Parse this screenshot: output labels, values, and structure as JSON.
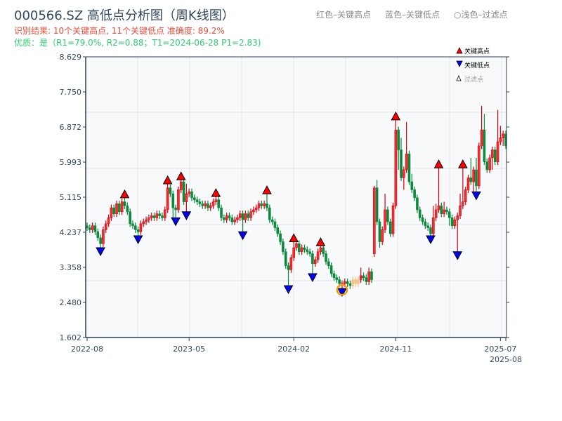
{
  "header": {
    "title": "000566.SZ 高低点分析图（周K线图）",
    "result_line": "识别结果: 10个关键高点, 11个关键低点  准确度: 89.2%",
    "quality_line": "优质：是（R1=79.0%, R2=0.88；T1=2024-06-28 P1=2.83)",
    "hint_high": "红色–关键高点",
    "hint_low": "蓝色–关键低点",
    "hint_filtered": "○浅色–过滤点"
  },
  "chart_data": {
    "type": "candlestick",
    "title": "000566.SZ 高低点分析图（周K线图）",
    "colors": {
      "up": "#d7000f",
      "up_fill": "#f03030",
      "down": "#0a8a3a",
      "filtered": "#f5c08a",
      "key_high": "#ff0000",
      "key_low": "#0000ff",
      "highlight_ring": "#f39c12"
    },
    "ylim": [
      1.602,
      8.629
    ],
    "y_ticks": [
      "1.602",
      "2.480",
      "3.358",
      "4.237",
      "5.115",
      "5.993",
      "6.872",
      "7.750",
      "8.629"
    ],
    "x_ticks": [
      {
        "index": 0,
        "label": "2022-08"
      },
      {
        "index": 38,
        "label": "2023-05"
      },
      {
        "index": 77,
        "label": "2024-02"
      },
      {
        "index": 115,
        "label": "2024-11"
      },
      {
        "index": 154,
        "label": "2025-07"
      },
      {
        "index": 156,
        "label": "2025-08"
      }
    ],
    "grid": true,
    "legend": {
      "position": "top-right",
      "items": [
        "关键高点",
        "关键低点",
        "过滤点"
      ]
    },
    "ohlc_fields": [
      "open",
      "high",
      "low",
      "close"
    ],
    "candles": [
      [
        4.4,
        4.48,
        4.27,
        4.35
      ],
      [
        4.35,
        4.43,
        4.22,
        4.3
      ],
      [
        4.3,
        4.48,
        4.22,
        4.4
      ],
      [
        4.4,
        4.48,
        4.17,
        4.25
      ],
      [
        4.25,
        4.33,
        4.02,
        4.1
      ],
      [
        4.1,
        4.18,
        3.85,
        3.95
      ],
      [
        3.95,
        4.38,
        3.87,
        4.3
      ],
      [
        4.3,
        4.53,
        4.22,
        4.45
      ],
      [
        4.45,
        4.68,
        4.37,
        4.6
      ],
      [
        4.6,
        4.93,
        4.52,
        4.85
      ],
      [
        4.85,
        4.93,
        4.62,
        4.7
      ],
      [
        4.7,
        5.03,
        4.62,
        4.95
      ],
      [
        4.95,
        5.03,
        4.67,
        4.75
      ],
      [
        4.75,
        5.08,
        4.67,
        5.0
      ],
      [
        5.0,
        5.1,
        4.82,
        4.9
      ],
      [
        4.9,
        4.98,
        4.67,
        4.75
      ],
      [
        4.75,
        4.83,
        4.37,
        4.45
      ],
      [
        4.45,
        4.53,
        4.32,
        4.4
      ],
      [
        4.4,
        4.48,
        4.22,
        4.3
      ],
      [
        4.3,
        4.38,
        4.15,
        4.25
      ],
      [
        4.25,
        4.53,
        4.17,
        4.45
      ],
      [
        4.45,
        4.58,
        4.37,
        4.5
      ],
      [
        4.5,
        4.63,
        4.42,
        4.55
      ],
      [
        4.55,
        4.68,
        4.47,
        4.6
      ],
      [
        4.6,
        4.73,
        4.52,
        4.65
      ],
      [
        4.65,
        4.73,
        4.52,
        4.6
      ],
      [
        4.6,
        4.78,
        4.52,
        4.7
      ],
      [
        4.7,
        4.78,
        4.57,
        4.65
      ],
      [
        4.65,
        4.73,
        4.52,
        4.6
      ],
      [
        4.6,
        4.88,
        4.52,
        4.8
      ],
      [
        4.8,
        5.45,
        4.72,
        5.35
      ],
      [
        5.35,
        5.43,
        5.12,
        5.2
      ],
      [
        5.2,
        5.28,
        4.6,
        4.85
      ],
      [
        4.85,
        4.93,
        4.6,
        4.8
      ],
      [
        4.8,
        5.38,
        4.72,
        5.3
      ],
      [
        5.3,
        5.55,
        5.22,
        5.5
      ],
      [
        5.5,
        5.58,
        4.92,
        5.0
      ],
      [
        5.0,
        5.45,
        4.75,
        5.2
      ],
      [
        5.2,
        5.33,
        5.12,
        5.25
      ],
      [
        5.25,
        5.33,
        5.02,
        5.1
      ],
      [
        5.1,
        5.18,
        4.97,
        5.05
      ],
      [
        5.05,
        5.13,
        4.92,
        5.0
      ],
      [
        5.0,
        5.08,
        4.87,
        4.95
      ],
      [
        4.95,
        5.03,
        4.82,
        4.9
      ],
      [
        4.9,
        5.03,
        4.82,
        4.95
      ],
      [
        4.95,
        5.03,
        4.77,
        4.85
      ],
      [
        4.85,
        4.98,
        4.77,
        4.9
      ],
      [
        4.9,
        5.08,
        4.82,
        5.0
      ],
      [
        5.0,
        5.13,
        4.92,
        5.05
      ],
      [
        5.05,
        5.13,
        4.77,
        4.85
      ],
      [
        4.85,
        4.93,
        4.52,
        4.6
      ],
      [
        4.6,
        4.68,
        4.47,
        4.55
      ],
      [
        4.55,
        4.73,
        4.47,
        4.65
      ],
      [
        4.65,
        4.73,
        4.52,
        4.6
      ],
      [
        4.6,
        4.68,
        4.42,
        4.5
      ],
      [
        4.5,
        4.63,
        4.42,
        4.55
      ],
      [
        4.55,
        4.68,
        4.47,
        4.6
      ],
      [
        4.6,
        4.78,
        4.52,
        4.7
      ],
      [
        4.7,
        4.78,
        4.25,
        4.55
      ],
      [
        4.55,
        4.78,
        4.47,
        4.7
      ],
      [
        4.7,
        4.78,
        4.52,
        4.6
      ],
      [
        4.6,
        4.83,
        4.52,
        4.75
      ],
      [
        4.75,
        4.88,
        4.67,
        4.8
      ],
      [
        4.8,
        4.93,
        4.72,
        4.85
      ],
      [
        4.85,
        5.03,
        4.77,
        4.95
      ],
      [
        4.95,
        5.03,
        4.82,
        4.9
      ],
      [
        4.9,
        5.03,
        4.82,
        4.95
      ],
      [
        4.95,
        5.2,
        4.77,
        4.85
      ],
      [
        4.85,
        4.93,
        4.47,
        4.55
      ],
      [
        4.55,
        4.63,
        4.42,
        4.5
      ],
      [
        4.5,
        4.58,
        4.27,
        4.35
      ],
      [
        4.35,
        4.43,
        4.12,
        4.2
      ],
      [
        4.2,
        4.28,
        3.92,
        4.0
      ],
      [
        4.0,
        4.08,
        3.67,
        3.75
      ],
      [
        3.75,
        3.83,
        3.32,
        3.4
      ],
      [
        3.4,
        3.48,
        2.9,
        3.3
      ],
      [
        3.3,
        3.68,
        3.22,
        3.6
      ],
      [
        3.6,
        4.0,
        3.52,
        3.85
      ],
      [
        3.85,
        4.03,
        3.77,
        3.95
      ],
      [
        3.95,
        4.03,
        3.67,
        3.75
      ],
      [
        3.75,
        3.93,
        3.67,
        3.85
      ],
      [
        3.85,
        3.93,
        3.72,
        3.8
      ],
      [
        3.8,
        3.88,
        3.67,
        3.75
      ],
      [
        3.75,
        3.83,
        3.62,
        3.7
      ],
      [
        3.7,
        3.78,
        3.2,
        3.45
      ],
      [
        3.45,
        3.63,
        3.37,
        3.55
      ],
      [
        3.55,
        3.83,
        3.47,
        3.75
      ],
      [
        3.75,
        3.9,
        3.67,
        3.85
      ],
      [
        3.85,
        3.93,
        3.62,
        3.7
      ],
      [
        3.7,
        3.78,
        3.42,
        3.5
      ],
      [
        3.5,
        3.58,
        3.32,
        3.4
      ],
      [
        3.4,
        3.48,
        3.12,
        3.2
      ],
      [
        3.2,
        3.28,
        3.02,
        3.1
      ],
      [
        3.1,
        3.18,
        2.97,
        3.05
      ],
      [
        3.05,
        3.13,
        2.87,
        2.95
      ],
      [
        2.95,
        3.03,
        2.83,
        2.95
      ],
      [
        2.95,
        3.08,
        2.87,
        3.0
      ],
      [
        3.0,
        3.08,
        2.87,
        2.95
      ],
      [
        2.95,
        3.03,
        2.82,
        2.9
      ],
      [
        2.9,
        3.13,
        2.82,
        3.05
      ],
      [
        3.05,
        3.13,
        2.87,
        2.95
      ],
      [
        2.95,
        3.13,
        2.87,
        3.05
      ],
      [
        3.05,
        3.35,
        2.97,
        3.15
      ],
      [
        3.15,
        3.23,
        3.02,
        3.1
      ],
      [
        3.1,
        3.18,
        2.92,
        3.0
      ],
      [
        3.0,
        3.35,
        2.92,
        3.25
      ],
      [
        3.25,
        3.33,
        2.97,
        3.05
      ],
      [
        3.7,
        5.4,
        3.62,
        5.35
      ],
      [
        5.35,
        5.55,
        4.42,
        4.5
      ],
      [
        4.5,
        4.58,
        3.85,
        4.0
      ],
      [
        4.0,
        4.38,
        3.92,
        4.3
      ],
      [
        4.3,
        5.2,
        4.22,
        4.8
      ],
      [
        4.8,
        4.88,
        4.42,
        4.5
      ],
      [
        4.5,
        4.58,
        4.12,
        4.2
      ],
      [
        4.2,
        4.98,
        4.12,
        4.9
      ],
      [
        4.9,
        7.05,
        4.82,
        6.8
      ],
      [
        6.8,
        6.88,
        5.8,
        6.3
      ],
      [
        6.3,
        6.6,
        5.52,
        5.6
      ],
      [
        5.6,
        5.88,
        5.3,
        5.8
      ],
      [
        5.8,
        7.0,
        5.72,
        6.2
      ],
      [
        6.2,
        6.28,
        5.42,
        5.5
      ],
      [
        5.5,
        5.7,
        5.22,
        5.3
      ],
      [
        5.3,
        5.38,
        5.02,
        5.1
      ],
      [
        5.1,
        5.18,
        4.72,
        4.8
      ],
      [
        4.8,
        4.88,
        4.52,
        4.6
      ],
      [
        4.6,
        4.68,
        4.42,
        4.5
      ],
      [
        4.5,
        4.58,
        4.32,
        4.4
      ],
      [
        4.4,
        4.48,
        4.27,
        4.35
      ],
      [
        4.35,
        4.43,
        4.15,
        4.2
      ],
      [
        4.2,
        4.9,
        4.12,
        4.6
      ],
      [
        4.6,
        4.95,
        4.52,
        4.8
      ],
      [
        4.8,
        5.85,
        4.72,
        4.9
      ],
      [
        4.9,
        4.98,
        4.62,
        4.7
      ],
      [
        4.7,
        5.0,
        4.62,
        4.8
      ],
      [
        4.8,
        4.88,
        4.67,
        4.75
      ],
      [
        4.75,
        4.83,
        4.4,
        4.6
      ],
      [
        4.6,
        4.68,
        4.32,
        4.4
      ],
      [
        4.4,
        4.63,
        4.32,
        4.55
      ],
      [
        4.55,
        4.73,
        3.75,
        4.65
      ],
      [
        4.65,
        5.2,
        4.57,
        4.9
      ],
      [
        4.9,
        5.85,
        4.82,
        5.0
      ],
      [
        5.0,
        5.38,
        4.92,
        5.3
      ],
      [
        5.3,
        5.68,
        5.22,
        5.6
      ],
      [
        5.6,
        6.1,
        5.42,
        5.5
      ],
      [
        5.5,
        5.88,
        5.2,
        5.8
      ],
      [
        5.8,
        6.1,
        5.25,
        5.4
      ],
      [
        5.4,
        6.48,
        5.32,
        6.4
      ],
      [
        6.4,
        7.4,
        6.32,
        6.8
      ],
      [
        6.8,
        7.2,
        5.92,
        6.0
      ],
      [
        6.0,
        6.08,
        5.72,
        5.8
      ],
      [
        5.8,
        6.18,
        5.72,
        6.1
      ],
      [
        6.1,
        6.38,
        5.8,
        6.3
      ],
      [
        6.3,
        6.38,
        5.92,
        6.0
      ],
      [
        6.0,
        7.3,
        5.92,
        6.5
      ],
      [
        6.5,
        6.9,
        6.42,
        6.6
      ],
      [
        6.6,
        6.78,
        6.4,
        6.7
      ],
      [
        6.7,
        6.78,
        6.32,
        6.4
      ]
    ],
    "filtered_indices": [
      99,
      100,
      101
    ],
    "key_highs": [
      {
        "index": 14,
        "price": 5.1
      },
      {
        "index": 30,
        "price": 5.45
      },
      {
        "index": 35,
        "price": 5.55
      },
      {
        "index": 48,
        "price": 5.13
      },
      {
        "index": 67,
        "price": 5.2
      },
      {
        "index": 77,
        "price": 4.0
      },
      {
        "index": 87,
        "price": 3.9
      },
      {
        "index": 115,
        "price": 7.05
      },
      {
        "index": 131,
        "price": 5.85
      },
      {
        "index": 140,
        "price": 5.85
      }
    ],
    "key_lows": [
      {
        "index": 5,
        "price": 3.85
      },
      {
        "index": 19,
        "price": 4.15
      },
      {
        "index": 33,
        "price": 4.6
      },
      {
        "index": 37,
        "price": 4.75
      },
      {
        "index": 58,
        "price": 4.25
      },
      {
        "index": 75,
        "price": 2.9
      },
      {
        "index": 84,
        "price": 3.2
      },
      {
        "index": 95,
        "price": 2.83
      },
      {
        "index": 128,
        "price": 4.15
      },
      {
        "index": 138,
        "price": 3.75
      },
      {
        "index": 145,
        "price": 5.25
      }
    ],
    "highlight": {
      "label": "T1",
      "date": "2024-06-28",
      "index": 95,
      "price": 2.83
    }
  }
}
